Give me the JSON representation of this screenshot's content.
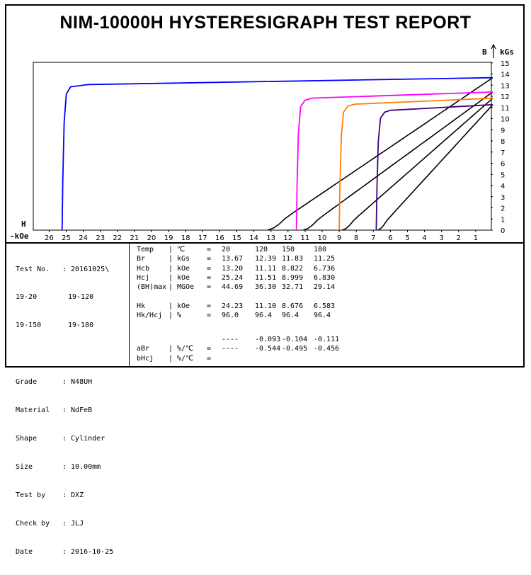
{
  "title": "NIM-10000H HYSTERESIGRAPH TEST REPORT",
  "chart_data": {
    "type": "line",
    "x_axis": {
      "label": "-kOe",
      "corner_label": "H",
      "ticks": [
        "26",
        "25",
        "24",
        "23",
        "22",
        "21",
        "20",
        "19",
        "18",
        "17",
        "16",
        "15",
        "14",
        "13",
        "12",
        "11",
        "10",
        "9",
        "8",
        "7",
        "6",
        "5",
        "4",
        "3",
        "2",
        "1"
      ],
      "range": [
        27,
        0
      ]
    },
    "y_axis": {
      "label": "kGs",
      "corner_label": "B",
      "ticks": [
        "0",
        "1",
        "2",
        "3",
        "4",
        "5",
        "6",
        "7",
        "8",
        "9",
        "10",
        "11",
        "12",
        "13",
        "14",
        "15"
      ],
      "range": [
        0,
        15
      ]
    },
    "series": [
      {
        "color": "#0000ff",
        "temperature": "20",
        "br": 13.67,
        "hcj": 25.24,
        "hk": 24.23,
        "top_h": 24.2
      },
      {
        "color": "#ff00ff",
        "temperature": "120",
        "br": 12.39,
        "hcj": 11.51,
        "hk": 11.1,
        "top_h": 11.1
      },
      {
        "color": "#ff8000",
        "temperature": "150",
        "br": 11.83,
        "hcj": 8.999,
        "hk": 8.676,
        "top_h": 8.6
      },
      {
        "color": "#400080",
        "temperature": "180",
        "br": 11.25,
        "hcj": 6.83,
        "hk": 6.583,
        "top_h": 6.5
      }
    ],
    "normal_curves": [
      {
        "color": "#000000",
        "br": 13.67,
        "hcb": 13.2
      },
      {
        "color": "#000000",
        "br": 12.39,
        "hcb": 11.11
      },
      {
        "color": "#000000",
        "br": 11.83,
        "hcb": 8.822
      },
      {
        "color": "#000000",
        "br": 11.25,
        "hcb": 6.736
      }
    ]
  },
  "info": {
    "test_no_label": "Test No.",
    "test_no": ": 20161025\\",
    "line2_label": "19-20",
    "line2_value": "19-120",
    "line3_label": "19-150",
    "line3_value": "19-180",
    "grade_label": "Grade",
    "grade": ": N48UH",
    "material_label": "Material",
    "material": ": NdFeB",
    "shape_label": "Shape",
    "shape": ": Cylinder",
    "size_label": "Size",
    "size": ": 10.00mm",
    "test_by_label": "Test by",
    "test_by": ": DXZ",
    "check_by_label": "Check by",
    "check_by": ": JLJ",
    "date_label": "Date",
    "date": ": 2016-10-25"
  },
  "results": {
    "rows": [
      {
        "param": "Temp",
        "sep": "|",
        "unit": "℃",
        "eq": "=",
        "v": [
          "20",
          "120",
          "150",
          "180"
        ]
      },
      {
        "param": "Br",
        "sep": "|",
        "unit": "kGs",
        "eq": "=",
        "v": [
          "13.67",
          "12.39",
          "11.83",
          "11.25"
        ]
      },
      {
        "param": "Hcb",
        "sep": "|",
        "unit": "kOe",
        "eq": "=",
        "v": [
          "13.20",
          "11.11",
          "8.822",
          "6.736"
        ]
      },
      {
        "param": "Hcj",
        "sep": "|",
        "unit": "kOe",
        "eq": "=",
        "v": [
          "25.24",
          "11.51",
          "8.999",
          "6.830"
        ]
      },
      {
        "param": "(BH)max",
        "sep": "|",
        "unit": "MGOe",
        "eq": "=",
        "v": [
          "44.69",
          "36.30",
          "32.71",
          "29.14"
        ]
      },
      {
        "param": "",
        "sep": "",
        "unit": "",
        "eq": "",
        "v": [
          "",
          "",
          "",
          ""
        ]
      },
      {
        "param": "Hk",
        "sep": "|",
        "unit": "kOe",
        "eq": "=",
        "v": [
          "24.23",
          "11.10",
          "8.676",
          "6.583"
        ]
      },
      {
        "param": "Hk/Hcj",
        "sep": "|",
        "unit": "%",
        "eq": "=",
        "v": [
          "96.0",
          "96.4",
          "96.4",
          "96.4"
        ]
      }
    ],
    "coef_rows": [
      {
        "param": "",
        "sep": "",
        "unit": "",
        "eq": "",
        "v": [
          "----",
          "-0.093",
          "-0.104",
          "-0.111"
        ]
      },
      {
        "param": "aBr",
        "sep": "|",
        "unit": "%/℃",
        "eq": "=",
        "v": [
          "----",
          "-0.544",
          "-0.495",
          "-0.456"
        ]
      },
      {
        "param": "bHcj",
        "sep": "|",
        "unit": "%/℃",
        "eq": "=",
        "v": [
          "",
          "",
          "",
          ""
        ]
      }
    ]
  }
}
